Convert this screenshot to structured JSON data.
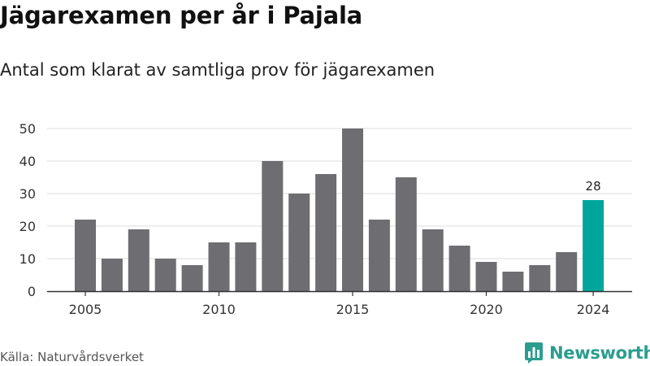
{
  "title": "Jägarexamen per år i Pajala",
  "subtitle": "Antal som klarat av samtliga prov för jägarexamen",
  "source": "Källa: Naturvårdsverket",
  "brand": {
    "name": "Newsworthy",
    "icon": "bar-chart-logo-icon"
  },
  "colors": {
    "bar": "#6e6d72",
    "highlight": "#00a69c",
    "grid": "#dddddd",
    "axis": "#333333",
    "brand": "#2a9d8f"
  },
  "chart_data": {
    "type": "bar",
    "categories": [
      "2005",
      "2006",
      "2007",
      "2008",
      "2009",
      "2010",
      "2011",
      "2012",
      "2013",
      "2014",
      "2015",
      "2016",
      "2017",
      "2018",
      "2019",
      "2020",
      "2021",
      "2022",
      "2023",
      "2024"
    ],
    "values": [
      22,
      10,
      19,
      10,
      8,
      15,
      15,
      40,
      30,
      36,
      50,
      22,
      35,
      19,
      14,
      9,
      6,
      8,
      12,
      28
    ],
    "highlight": {
      "category": "2024",
      "label": "28"
    },
    "yticks": [
      0,
      10,
      20,
      30,
      40,
      50
    ],
    "xtick_labels": [
      "2005",
      "2010",
      "2015",
      "2020",
      "2024"
    ],
    "ylim": [
      0,
      50
    ],
    "grid": true,
    "legend": "none"
  }
}
